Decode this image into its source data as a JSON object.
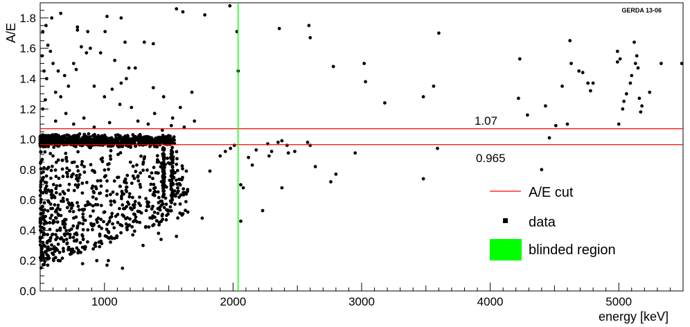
{
  "chart_data": {
    "type": "scatter",
    "tag": "GERDA 13-06",
    "xlabel": "energy [keV]",
    "ylabel": "A/E",
    "xlim": [
      500,
      5500
    ],
    "ylim": [
      0.0,
      1.9
    ],
    "x_ticks": [
      1000,
      2000,
      3000,
      4000,
      5000
    ],
    "y_ticks": [
      0.0,
      0.2,
      0.4,
      0.6,
      0.8,
      1.0,
      1.2,
      1.4,
      1.6,
      1.8
    ],
    "x_tick_labels": [
      "1000",
      "2000",
      "3000",
      "4000",
      "5000"
    ],
    "y_tick_labels": [
      "0.0",
      "0.2",
      "0.4",
      "0.6",
      "0.8",
      "1.0",
      "1.2",
      "1.4",
      "1.6",
      "1.8"
    ],
    "cut_lines": [
      {
        "value": 1.07,
        "label": "1.07",
        "color": "#ff0000"
      },
      {
        "value": 0.965,
        "label": "0.965",
        "color": "#ff0000"
      }
    ],
    "blinded_region": {
      "x": 2039,
      "color": "#00ff00"
    },
    "legend": [
      {
        "label": "A/E cut",
        "symbol": "line",
        "color": "#ff0000"
      },
      {
        "label": "data",
        "symbol": "marker",
        "color": "#000000"
      },
      {
        "label": "blinded region",
        "symbol": "box",
        "color": "#00ff00"
      }
    ],
    "dense_band": {
      "x_range": [
        500,
        1550
      ],
      "y_center": 0.99,
      "y_spread": 0.035,
      "count": 900
    },
    "series": [
      {
        "points": [
          [
            2040,
            1.45
          ],
          [
            2030,
            1.71
          ],
          [
            1975,
            1.88
          ],
          [
            1780,
            1.82
          ],
          [
            1610,
            1.84
          ],
          [
            1560,
            1.86
          ],
          [
            1380,
            1.63
          ],
          [
            1310,
            1.64
          ],
          [
            1160,
            1.64
          ],
          [
            1130,
            1.8
          ],
          [
            1020,
            1.81
          ],
          [
            1005,
            1.71
          ],
          [
            870,
            1.71
          ],
          [
            790,
            1.74
          ],
          [
            790,
            1.72
          ],
          [
            660,
            1.83
          ],
          [
            590,
            1.8
          ],
          [
            545,
            1.75
          ],
          [
            520,
            1.71
          ],
          [
            2360,
            1.73
          ],
          [
            2590,
            1.75
          ],
          [
            2600,
            1.67
          ],
          [
            3600,
            1.7
          ],
          [
            2780,
            1.48
          ],
          [
            3020,
            1.5
          ],
          [
            3030,
            1.38
          ],
          [
            3180,
            1.24
          ],
          [
            3480,
            1.28
          ],
          [
            3560,
            1.35
          ],
          [
            3590,
            0.94
          ],
          [
            3480,
            0.74
          ],
          [
            2760,
            0.72
          ],
          [
            2800,
            0.77
          ],
          [
            2950,
            0.91
          ],
          [
            4230,
            1.53
          ],
          [
            4220,
            1.27
          ],
          [
            4290,
            1.16
          ],
          [
            4430,
            1.22
          ],
          [
            4460,
            1.01
          ],
          [
            4510,
            1.09
          ],
          [
            4400,
            0.8
          ],
          [
            4560,
            1.35
          ],
          [
            4600,
            1.1
          ],
          [
            4620,
            1.65
          ],
          [
            4630,
            1.5
          ],
          [
            4690,
            1.45
          ],
          [
            4720,
            1.44
          ],
          [
            4760,
            1.37
          ],
          [
            4780,
            1.32
          ],
          [
            4800,
            1.37
          ],
          [
            4990,
            1.58
          ],
          [
            5010,
            1.53
          ],
          [
            5000,
            1.1
          ],
          [
            5030,
            1.2
          ],
          [
            5040,
            1.25
          ],
          [
            5060,
            1.3
          ],
          [
            5090,
            1.37
          ],
          [
            5100,
            1.42
          ],
          [
            5120,
            1.64
          ],
          [
            5130,
            1.5
          ],
          [
            5140,
            1.55
          ],
          [
            5150,
            1.47
          ],
          [
            5160,
            1.27
          ],
          [
            5170,
            1.18
          ],
          [
            5180,
            1.22
          ],
          [
            5240,
            1.31
          ],
          [
            5330,
            1.5
          ],
          [
            5490,
            1.5
          ],
          [
            4990,
            1.51
          ],
          [
            2060,
            0.7
          ],
          [
            2080,
            0.68
          ],
          [
            2060,
            0.46
          ],
          [
            2230,
            0.53
          ],
          [
            2380,
            0.68
          ],
          [
            2480,
            0.92
          ],
          [
            2640,
            0.82
          ],
          [
            1760,
            0.48
          ],
          [
            1560,
            0.36
          ],
          [
            1440,
            0.34
          ],
          [
            1420,
            0.38
          ],
          [
            1300,
            0.3
          ],
          [
            1140,
            0.15
          ],
          [
            1020,
            0.17
          ],
          [
            1030,
            0.2
          ],
          [
            940,
            0.2
          ],
          [
            830,
            0.18
          ],
          [
            680,
            0.28
          ],
          [
            2120,
            0.88
          ],
          [
            2180,
            0.93
          ],
          [
            2280,
            0.89
          ],
          [
            2270,
            0.97
          ],
          [
            2300,
            0.92
          ],
          [
            2350,
            0.98
          ],
          [
            2380,
            0.99
          ],
          [
            2420,
            0.96
          ],
          [
            2430,
            0.91
          ],
          [
            2580,
            0.98
          ],
          [
            2600,
            0.96
          ],
          [
            2150,
            0.83
          ],
          [
            1820,
            0.79
          ],
          [
            1900,
            0.89
          ],
          [
            1940,
            0.92
          ],
          [
            1980,
            0.94
          ],
          [
            2010,
            0.96
          ],
          [
            1680,
            1.31
          ],
          [
            1590,
            1.21
          ],
          [
            1530,
            1.14
          ],
          [
            1460,
            1.28
          ],
          [
            1380,
            1.34
          ],
          [
            1340,
            1.1
          ],
          [
            1240,
            1.47
          ],
          [
            1190,
            1.47
          ],
          [
            1170,
            1.4
          ],
          [
            1130,
            1.37
          ],
          [
            1080,
            1.52
          ],
          [
            1060,
            1.33
          ],
          [
            1000,
            1.28
          ],
          [
            970,
            1.57
          ],
          [
            920,
            1.35
          ],
          [
            890,
            1.6
          ],
          [
            860,
            1.57
          ],
          [
            820,
            1.61
          ],
          [
            780,
            1.46
          ],
          [
            760,
            1.5
          ],
          [
            720,
            1.35
          ],
          [
            690,
            1.42
          ],
          [
            660,
            1.28
          ],
          [
            640,
            1.45
          ],
          [
            620,
            1.31
          ],
          [
            600,
            1.5
          ],
          [
            580,
            1.58
          ],
          [
            560,
            1.62
          ],
          [
            550,
            1.4
          ],
          [
            540,
            1.26
          ],
          [
            530,
            1.45
          ],
          [
            520,
            1.2
          ],
          [
            515,
            1.55
          ],
          [
            620,
            1.12
          ],
          [
            700,
            1.17
          ],
          [
            760,
            1.1
          ],
          [
            840,
            1.14
          ],
          [
            920,
            1.08
          ],
          [
            1040,
            1.11
          ],
          [
            1120,
            1.23
          ],
          [
            1210,
            1.21
          ],
          [
            1260,
            1.12
          ],
          [
            1390,
            1.17
          ],
          [
            1450,
            1.06
          ],
          [
            1520,
            1.09
          ],
          [
            1620,
            1.08
          ],
          [
            1700,
            1.12
          ]
        ]
      }
    ],
    "lower_scatter": {
      "x_range": [
        500,
        1650
      ],
      "y_range": [
        0.15,
        0.93
      ],
      "count": 650
    }
  }
}
